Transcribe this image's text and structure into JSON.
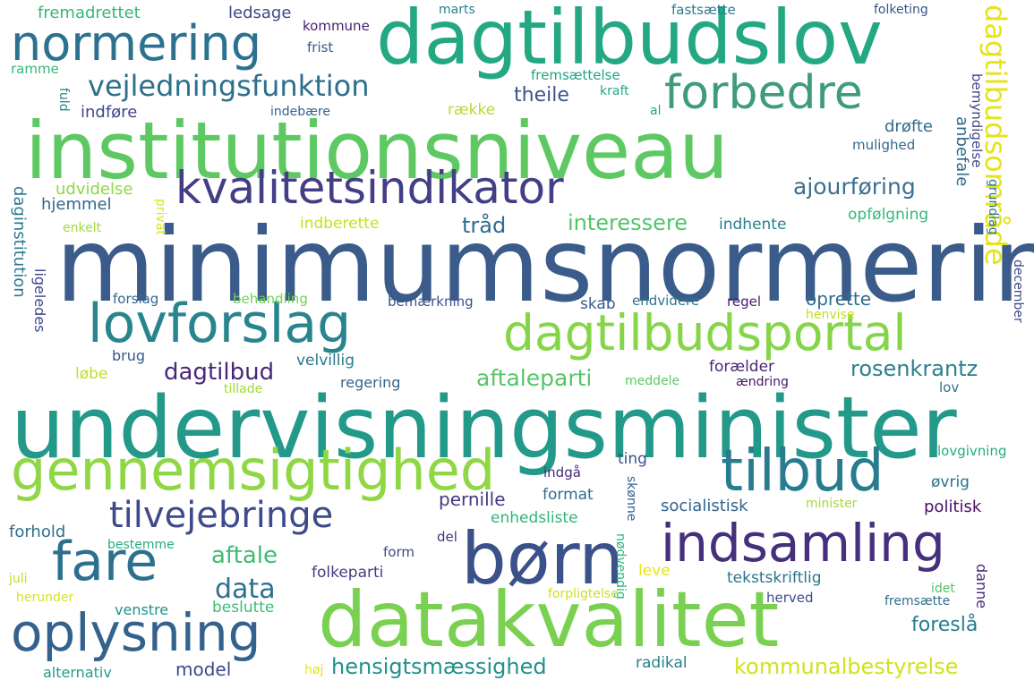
{
  "words": [
    {
      "text": "minimumsnormering",
      "color": "#3b5c8a"
    },
    {
      "text": "undervisningsminister",
      "color": "#23998a"
    },
    {
      "text": "institutionsniveau",
      "color": "#5ec962"
    },
    {
      "text": "dagtilbudslov",
      "color": "#23a883"
    },
    {
      "text": "datakvalitet",
      "color": "#7ad151"
    },
    {
      "text": "børn",
      "color": "#3b5189"
    },
    {
      "text": "kvalitetsindikator",
      "color": "#433e85"
    },
    {
      "text": "normering",
      "color": "#2c728e"
    },
    {
      "text": "forbedre",
      "color": "#3e9c7a"
    },
    {
      "text": "lovforslag",
      "color": "#29858d"
    },
    {
      "text": "dagtilbudsportal",
      "color": "#86d549"
    },
    {
      "text": "gennemsigtighed",
      "color": "#8fd744"
    },
    {
      "text": "tilbud",
      "color": "#287c8e"
    },
    {
      "text": "indsamling",
      "color": "#462f7c"
    },
    {
      "text": "fare",
      "color": "#2c708e"
    },
    {
      "text": "tilvejebringe",
      "color": "#3e4a89"
    },
    {
      "text": "oplysning",
      "color": "#33638d"
    },
    {
      "text": "vejledningsfunktion",
      "color": "#2d708e"
    },
    {
      "text": "dagtilbudsområde",
      "color": "#e5e419"
    },
    {
      "text": "ajourføring",
      "color": "#3b6f8e"
    },
    {
      "text": "interessere",
      "color": "#52c569"
    },
    {
      "text": "tråd",
      "color": "#2f6c8e"
    },
    {
      "text": "dagtilbud",
      "color": "#482878"
    },
    {
      "text": "aftaleparti",
      "color": "#55c667"
    },
    {
      "text": "rosenkrantz",
      "color": "#2b808e"
    },
    {
      "text": "aftale",
      "color": "#3dbc74"
    },
    {
      "text": "data",
      "color": "#2d718e"
    },
    {
      "text": "hensigtsmæssighed",
      "color": "#21918c"
    },
    {
      "text": "kommunalbestyrelse",
      "color": "#d2e21b"
    },
    {
      "text": "foreslå",
      "color": "#287d8e"
    },
    {
      "text": "model",
      "color": "#3e4a89"
    },
    {
      "text": "pernille",
      "color": "#443983"
    },
    {
      "text": "socialistisk",
      "color": "#32648e"
    },
    {
      "text": "politisk",
      "color": "#471063"
    },
    {
      "text": "fremadrettet",
      "color": "#35b779"
    },
    {
      "text": "ledsage",
      "color": "#404688"
    },
    {
      "text": "kommune",
      "color": "#481f70"
    },
    {
      "text": "frist",
      "color": "#38598c"
    },
    {
      "text": "marts",
      "color": "#26828e"
    },
    {
      "text": "fastsætte",
      "color": "#2a788e"
    },
    {
      "text": "folketing",
      "color": "#3b528b"
    },
    {
      "text": "ramme",
      "color": "#35b779"
    },
    {
      "text": "fremsættelse",
      "color": "#21a585"
    },
    {
      "text": "kraft",
      "color": "#22a884"
    },
    {
      "text": "theile",
      "color": "#3b528b"
    },
    {
      "text": "fuld",
      "color": "#25848e"
    },
    {
      "text": "indføre",
      "color": "#404688"
    },
    {
      "text": "indebære",
      "color": "#33638d"
    },
    {
      "text": "række",
      "color": "#b5de2b"
    },
    {
      "text": "al",
      "color": "#20a486"
    },
    {
      "text": "drøfte",
      "color": "#31688e"
    },
    {
      "text": "mulighed",
      "color": "#31688e"
    },
    {
      "text": "bemyndigelse",
      "color": "#414487"
    },
    {
      "text": "grundlag",
      "color": "#2c728e"
    },
    {
      "text": "anbefale",
      "color": "#30698e"
    },
    {
      "text": "udvidelse",
      "color": "#8fd744"
    },
    {
      "text": "hjemmel",
      "color": "#30698e"
    },
    {
      "text": "privat",
      "color": "#dde318"
    },
    {
      "text": "enkelt",
      "color": "#9fda3a"
    },
    {
      "text": "indberette",
      "color": "#c8e020"
    },
    {
      "text": "indhente",
      "color": "#27808e"
    },
    {
      "text": "opfølgning",
      "color": "#35b779"
    },
    {
      "text": "daginstitution",
      "color": "#2a788e"
    },
    {
      "text": "ligeledes",
      "color": "#3e4989"
    },
    {
      "text": "forslag",
      "color": "#31688e"
    },
    {
      "text": "behandling",
      "color": "#73d056"
    },
    {
      "text": "bemærkning",
      "color": "#3b528b"
    },
    {
      "text": "skab",
      "color": "#375b8d"
    },
    {
      "text": "endvidere",
      "color": "#2c738e"
    },
    {
      "text": "regel",
      "color": "#481b6d"
    },
    {
      "text": "oprette",
      "color": "#2e6d8e"
    },
    {
      "text": "henvise",
      "color": "#bddf26"
    },
    {
      "text": "december",
      "color": "#3f4788"
    },
    {
      "text": "brug",
      "color": "#38598c"
    },
    {
      "text": "velvillig",
      "color": "#2a788e"
    },
    {
      "text": "forælder",
      "color": "#482576"
    },
    {
      "text": "løbe",
      "color": "#c0df25"
    },
    {
      "text": "tillade",
      "color": "#a2da37"
    },
    {
      "text": "regering",
      "color": "#33638d"
    },
    {
      "text": "meddele",
      "color": "#5ec962"
    },
    {
      "text": "ændring",
      "color": "#481467"
    },
    {
      "text": "lov",
      "color": "#2d708e"
    },
    {
      "text": "lovgivning",
      "color": "#25ab82"
    },
    {
      "text": "indgå",
      "color": "#482878"
    },
    {
      "text": "ting",
      "color": "#3b528b"
    },
    {
      "text": "format",
      "color": "#2f6c8e"
    },
    {
      "text": "øvrig",
      "color": "#2c728e"
    },
    {
      "text": "skønne",
      "color": "#33638d"
    },
    {
      "text": "minister",
      "color": "#a8db34"
    },
    {
      "text": "enhedsliste",
      "color": "#2fb47c"
    },
    {
      "text": "forhold",
      "color": "#2d708e"
    },
    {
      "text": "bestemme",
      "color": "#25ac82"
    },
    {
      "text": "form",
      "color": "#404688"
    },
    {
      "text": "del",
      "color": "#46337f"
    },
    {
      "text": "nødvendig",
      "color": "#32b67a"
    },
    {
      "text": "leve",
      "color": "#e5e419"
    },
    {
      "text": "tekstskriftlig",
      "color": "#2b748e"
    },
    {
      "text": "danne",
      "color": "#482878"
    },
    {
      "text": "folkeparti",
      "color": "#433e85"
    },
    {
      "text": "juli",
      "color": "#bddf26"
    },
    {
      "text": "herunder",
      "color": "#d8e219"
    },
    {
      "text": "venstre",
      "color": "#20928c"
    },
    {
      "text": "beslutte",
      "color": "#3dbc74"
    },
    {
      "text": "forpligtelse",
      "color": "#cae11f"
    },
    {
      "text": "herved",
      "color": "#3e4a89"
    },
    {
      "text": "idet",
      "color": "#50c46a"
    },
    {
      "text": "fremsætte",
      "color": "#2e6e8e"
    },
    {
      "text": "alternativ",
      "color": "#1f9e89"
    },
    {
      "text": "høj",
      "color": "#e7e419"
    },
    {
      "text": "radikal",
      "color": "#26818e"
    }
  ]
}
